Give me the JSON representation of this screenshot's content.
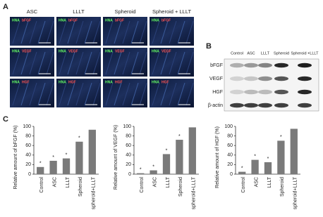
{
  "panels": [
    "A",
    "B",
    "C"
  ],
  "microscopy": {
    "columns": [
      "ASC",
      "LLLT",
      "Spheroid",
      "Spheroid + LLLT"
    ],
    "rows": [
      {
        "stain": "HNA",
        "marker": "bFGF"
      },
      {
        "stain": "HNA",
        "marker": "VEGF"
      },
      {
        "stain": "HNA",
        "marker": "HGF"
      }
    ]
  },
  "blot": {
    "columns": [
      "Control",
      "ASC",
      "LLLT",
      "Spheroid",
      "Spheroid +LLLT"
    ],
    "rows": [
      "bFGF",
      "VEGF",
      "HGF",
      "β-actin"
    ]
  },
  "chart_data": [
    {
      "type": "bar",
      "y_label": "Relative amount of bFGF (%)",
      "categories": [
        "Control",
        "ASC",
        "LLLT",
        "Spheroid",
        "spheroid+LLLT"
      ],
      "values": [
        15,
        28,
        33,
        68,
        93
      ],
      "annotations": [
        "*",
        "*",
        "*",
        "*"
      ],
      "color": "#7a7a7a",
      "ylim": [
        0,
        100
      ],
      "yticks": [
        0,
        20,
        40,
        60,
        80,
        100
      ]
    },
    {
      "type": "bar",
      "y_label": "Relative amount of VEGF (%)",
      "categories": [
        "Control",
        "ASC",
        "LLLT",
        "Spheroid",
        "spheroid+LLLT"
      ],
      "values": [
        2,
        8,
        42,
        72,
        98
      ],
      "annotations": [
        "*",
        "*",
        "*",
        "*"
      ],
      "color": "#7a7a7a",
      "ylim": [
        0,
        100
      ],
      "yticks": [
        0,
        20,
        40,
        60,
        80,
        100
      ]
    },
    {
      "type": "bar",
      "y_label": "Relative amount of HGF (%)",
      "categories": [
        "Control",
        "ASC",
        "LLLT",
        "Spheroid",
        "spheroid+LLLT"
      ],
      "values": [
        5,
        30,
        25,
        70,
        95
      ],
      "annotations": [
        "*",
        "*",
        "*",
        "*"
      ],
      "color": "#7a7a7a",
      "ylim": [
        0,
        100
      ],
      "yticks": [
        0,
        20,
        40,
        60,
        80,
        100
      ]
    }
  ]
}
